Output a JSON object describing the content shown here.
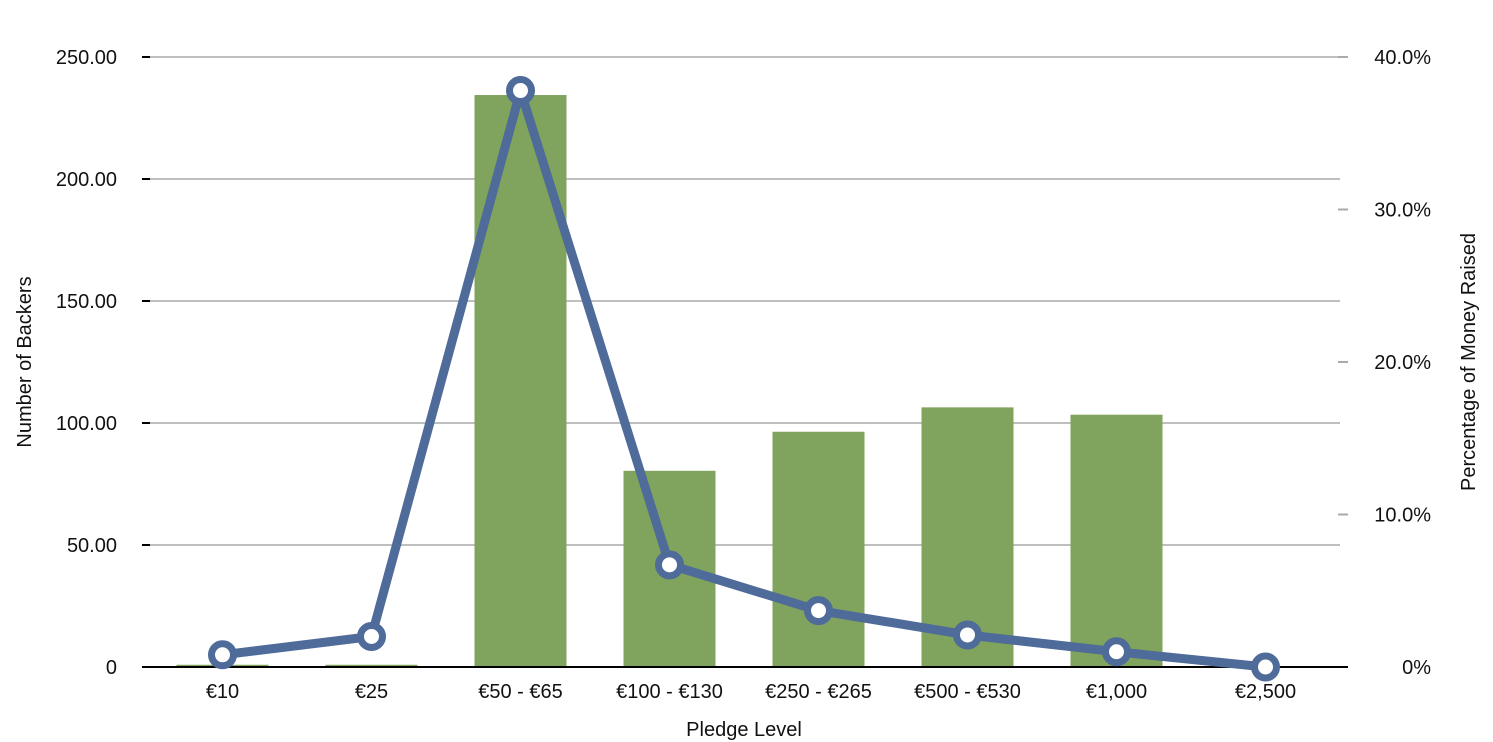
{
  "chart_data": {
    "type": "bar+line",
    "title": "",
    "xlabel": "Pledge Level",
    "ylabel": "Number of Backers",
    "y2label": "Percentage of Money Raised",
    "categories": [
      "€10",
      "€25",
      "€50 - €65",
      "€100 - €130",
      "€250 - €265",
      "€500 - €530",
      "€1,000",
      "€2,500"
    ],
    "ylim": [
      0,
      250
    ],
    "y2lim": [
      0,
      40
    ],
    "yticks": [
      "0",
      "50.00",
      "100.00",
      "150.00",
      "200.00",
      "250.00"
    ],
    "y2ticks": [
      "0%",
      "10.0%",
      "20.0%",
      "30.0%",
      "40.0%"
    ],
    "grid": true,
    "legend": "none",
    "series": [
      {
        "name": "Number of Backers",
        "type": "bar",
        "axis": "left",
        "color": "#80a35e",
        "values": [
          0.5,
          0.5,
          234,
          80,
          96,
          106,
          103,
          0
        ]
      },
      {
        "name": "Percentage of Money Raised",
        "type": "line",
        "axis": "right",
        "color": "#4e6b99",
        "marker": "hollow-circle",
        "values": [
          0.8,
          2.0,
          37.8,
          6.7,
          3.7,
          2.1,
          1.0,
          0.0
        ]
      }
    ]
  }
}
